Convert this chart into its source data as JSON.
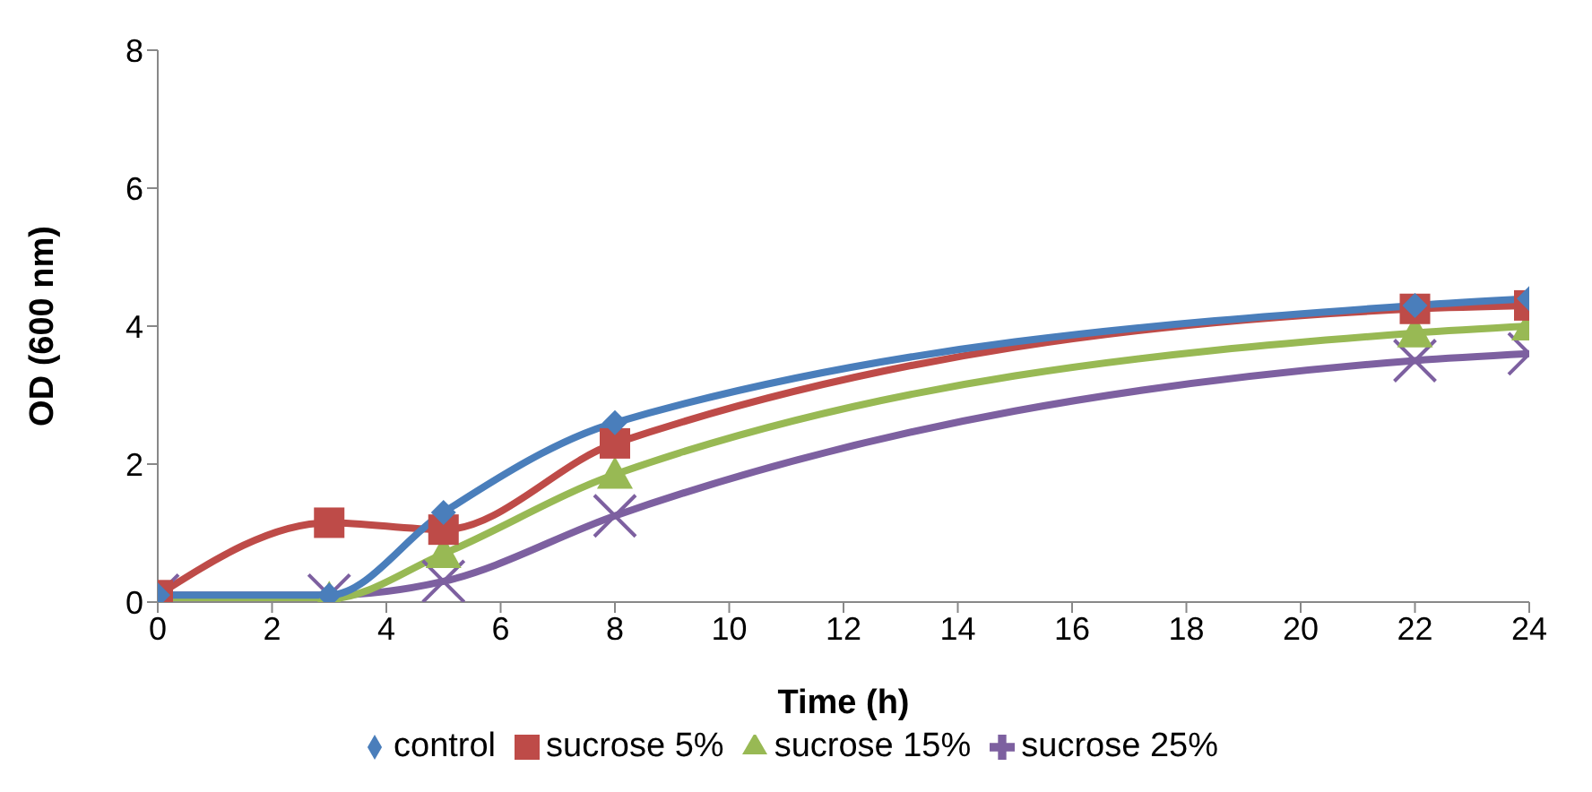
{
  "chart_data": {
    "type": "line",
    "xlabel": "Time (h)",
    "ylabel": "OD (600 nm)",
    "x": [
      0,
      3,
      5,
      8,
      22,
      24
    ],
    "series": [
      {
        "name": "control",
        "color": "#4a7ebb",
        "marker": "diamond",
        "values": [
          0.1,
          0.1,
          1.3,
          2.6,
          4.3,
          4.4
        ]
      },
      {
        "name": "sucrose 5%",
        "color": "#be4b48",
        "marker": "square",
        "values": [
          0.1,
          1.15,
          1.05,
          2.3,
          4.25,
          4.3
        ]
      },
      {
        "name": "sucrose 15%",
        "color": "#98b954",
        "marker": "triangle",
        "values": [
          0.05,
          0.05,
          0.7,
          1.85,
          3.9,
          4.0
        ]
      },
      {
        "name": "sucrose 25%",
        "color": "#7d60a0",
        "marker": "cross",
        "values": [
          0.1,
          0.1,
          0.3,
          1.25,
          3.5,
          3.6
        ]
      }
    ],
    "xlim": [
      0,
      24
    ],
    "xticks": [
      0,
      2,
      4,
      6,
      8,
      10,
      12,
      14,
      16,
      18,
      20,
      22,
      24
    ],
    "ylim": [
      0,
      8
    ],
    "yticks": [
      0,
      2,
      4,
      6,
      8
    ],
    "grid": false,
    "legend": "bottom",
    "line_style": "solid"
  }
}
